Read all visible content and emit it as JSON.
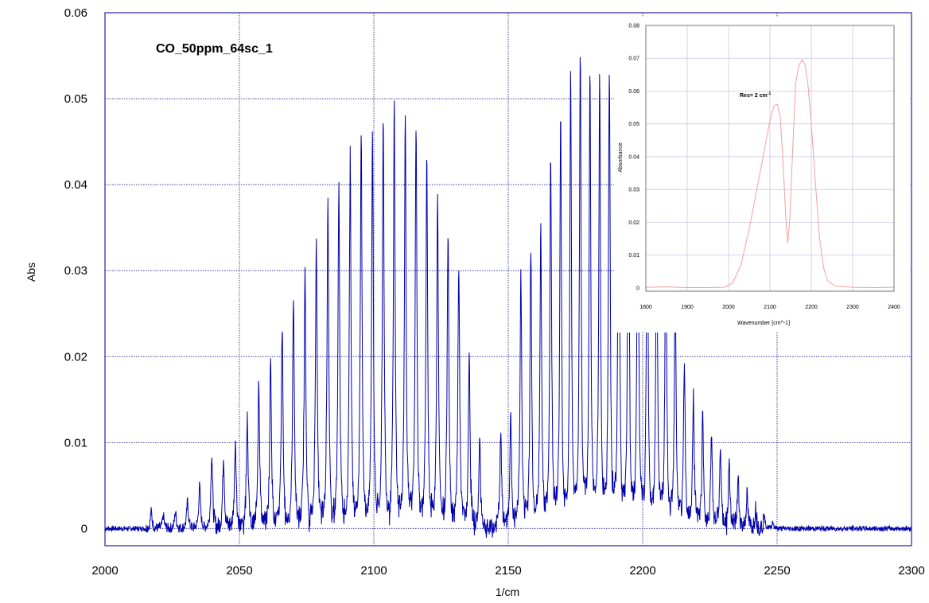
{
  "chart_data": [
    {
      "type": "line",
      "title": "CO_50ppm_64sc_1",
      "xlabel": "1/cm",
      "ylabel": "Abs",
      "xlim": [
        2000,
        2300
      ],
      "ylim": [
        -0.002,
        0.06
      ],
      "x_ticks": [
        "2000",
        "2050",
        "2100",
        "2150",
        "2200",
        "2250",
        "2300"
      ],
      "y_ticks": [
        "0",
        "0.01",
        "0.02",
        "0.03",
        "0.04",
        "0.05",
        "0.06"
      ],
      "grid": true,
      "line_color": "#0000aa",
      "series": [
        {
          "line_spacing": 3.85,
          "band_origin": 2143.3,
          "r_branch_lines": [
            [
              2147.2,
              0.011
            ],
            [
              2150.9,
              0.013
            ],
            [
              2154.7,
              0.03
            ],
            [
              2158.4,
              0.033
            ],
            [
              2162.1,
              0.035
            ],
            [
              2165.8,
              0.044
            ],
            [
              2169.5,
              0.049
            ],
            [
              2173.2,
              0.053
            ],
            [
              2176.8,
              0.055
            ],
            [
              2180.4,
              0.054
            ],
            [
              2184.0,
              0.053
            ],
            [
              2187.6,
              0.054
            ],
            [
              2191.1,
              0.051
            ],
            [
              2194.7,
              0.048
            ],
            [
              2198.2,
              0.046
            ],
            [
              2201.7,
              0.042
            ],
            [
              2205.2,
              0.04
            ],
            [
              2208.6,
              0.036
            ],
            [
              2212.1,
              0.03
            ],
            [
              2215.5,
              0.0195
            ],
            [
              2218.9,
              0.016
            ],
            [
              2222.3,
              0.013
            ],
            [
              2225.6,
              0.0115
            ],
            [
              2228.9,
              0.0095
            ],
            [
              2232.2,
              0.0078
            ],
            [
              2235.5,
              0.0058
            ],
            [
              2238.8,
              0.004
            ],
            [
              2242.0,
              0.0025
            ],
            [
              2245.2,
              0.0015
            ],
            [
              2248.4,
              0.0008
            ]
          ],
          "p_branch_lines": [
            [
              2139.4,
              0.0105
            ],
            [
              2135.5,
              0.0205
            ],
            [
              2131.6,
              0.031
            ],
            [
              2127.6,
              0.035
            ],
            [
              2123.7,
              0.039
            ],
            [
              2119.7,
              0.043
            ],
            [
              2115.7,
              0.0475
            ],
            [
              2111.7,
              0.048
            ],
            [
              2107.6,
              0.0495
            ],
            [
              2103.5,
              0.0485
            ],
            [
              2099.5,
              0.046
            ],
            [
              2095.3,
              0.046
            ],
            [
              2091.2,
              0.0435
            ],
            [
              2087.0,
              0.04
            ],
            [
              2082.9,
              0.0385
            ],
            [
              2078.6,
              0.0345
            ],
            [
              2074.4,
              0.031
            ],
            [
              2070.1,
              0.0275
            ],
            [
              2065.9,
              0.0235
            ],
            [
              2061.6,
              0.02
            ],
            [
              2057.2,
              0.0175
            ],
            [
              2052.9,
              0.0135
            ],
            [
              2048.5,
              0.0105
            ],
            [
              2044.1,
              0.0085
            ],
            [
              2039.7,
              0.0085
            ],
            [
              2035.2,
              0.005
            ],
            [
              2030.7,
              0.0032
            ],
            [
              2026.2,
              0.002
            ],
            [
              2021.7,
              0.0015
            ],
            [
              2017.2,
              0.002
            ]
          ]
        }
      ]
    },
    {
      "type": "line",
      "title": "Res= 2 cm-1",
      "annotation": {
        "text": "Res= 2 cm",
        "superscript": "-1"
      },
      "xlabel": "Wavenumber [cm^-1]",
      "ylabel": "Absorbance",
      "xlim": [
        1800,
        2400
      ],
      "ylim": [
        -0.001,
        0.08
      ],
      "x_ticks": [
        "1800",
        "1900",
        "2000",
        "2100",
        "2200",
        "2300",
        "2400"
      ],
      "y_ticks": [
        "0",
        "0.01",
        "0.02",
        "0.03",
        "0.04",
        "0.05",
        "0.06",
        "0.07",
        "0.08"
      ],
      "grid": true,
      "line_color": "#f4a0a0",
      "series": [
        {
          "x": [
            1800,
            1850,
            1900,
            1950,
            1990,
            2010,
            2030,
            2050,
            2070,
            2085,
            2100,
            2110,
            2118,
            2125,
            2132,
            2138,
            2143,
            2148,
            2155,
            2162,
            2170,
            2178,
            2185,
            2192,
            2200,
            2210,
            2220,
            2230,
            2240,
            2260,
            2300,
            2350,
            2400
          ],
          "y": [
            0.0002,
            0.0003,
            0.0001,
            0.0001,
            0.0002,
            0.0015,
            0.007,
            0.018,
            0.031,
            0.041,
            0.051,
            0.0555,
            0.056,
            0.052,
            0.038,
            0.022,
            0.0135,
            0.021,
            0.042,
            0.062,
            0.068,
            0.0695,
            0.068,
            0.062,
            0.05,
            0.032,
            0.015,
            0.006,
            0.002,
            0.0005,
            0.0002,
            0.0001,
            0.0002
          ]
        }
      ]
    }
  ]
}
